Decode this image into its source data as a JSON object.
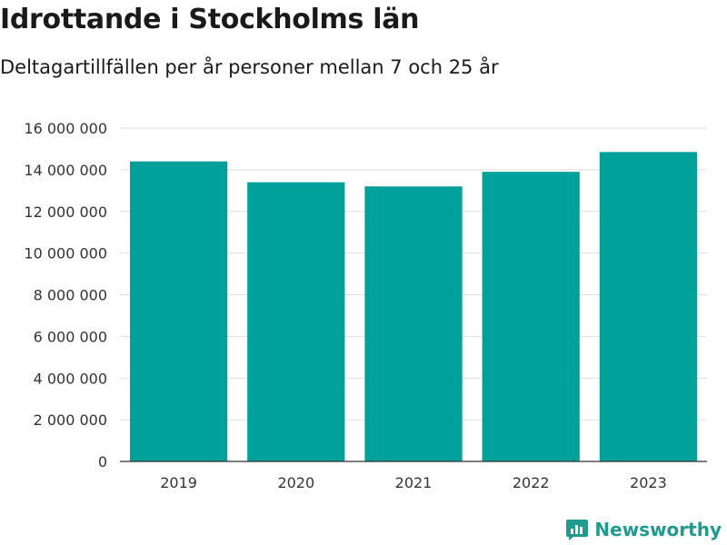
{
  "header": {
    "title": "Idrottande i Stockholms län",
    "subtitle": "Deltagartillfällen per år personer mellan 7 och 25 år"
  },
  "brand": {
    "name": "Newsworthy",
    "icon": "newsworthy-logo-icon"
  },
  "colors": {
    "bar": "#00a19a",
    "grid": "#dddddd",
    "axis": "#333333",
    "brand": "#1f9a8e"
  },
  "chart_data": {
    "type": "bar",
    "title": "Idrottande i Stockholms län",
    "subtitle": "Deltagartillfällen per år personer mellan 7 och 25 år",
    "xlabel": "",
    "ylabel": "",
    "categories": [
      "2019",
      "2020",
      "2021",
      "2022",
      "2023"
    ],
    "values": [
      14400000,
      13400000,
      13200000,
      13900000,
      14850000
    ],
    "ylim": [
      0,
      16000000
    ],
    "yticks": [
      0,
      2000000,
      4000000,
      6000000,
      8000000,
      10000000,
      12000000,
      14000000,
      16000000
    ],
    "ytick_labels": [
      "0",
      "2 000 000",
      "4 000 000",
      "6 000 000",
      "8 000 000",
      "10 000 000",
      "12 000 000",
      "14 000 000",
      "16 000 000"
    ],
    "grid": true,
    "legend": "none"
  }
}
